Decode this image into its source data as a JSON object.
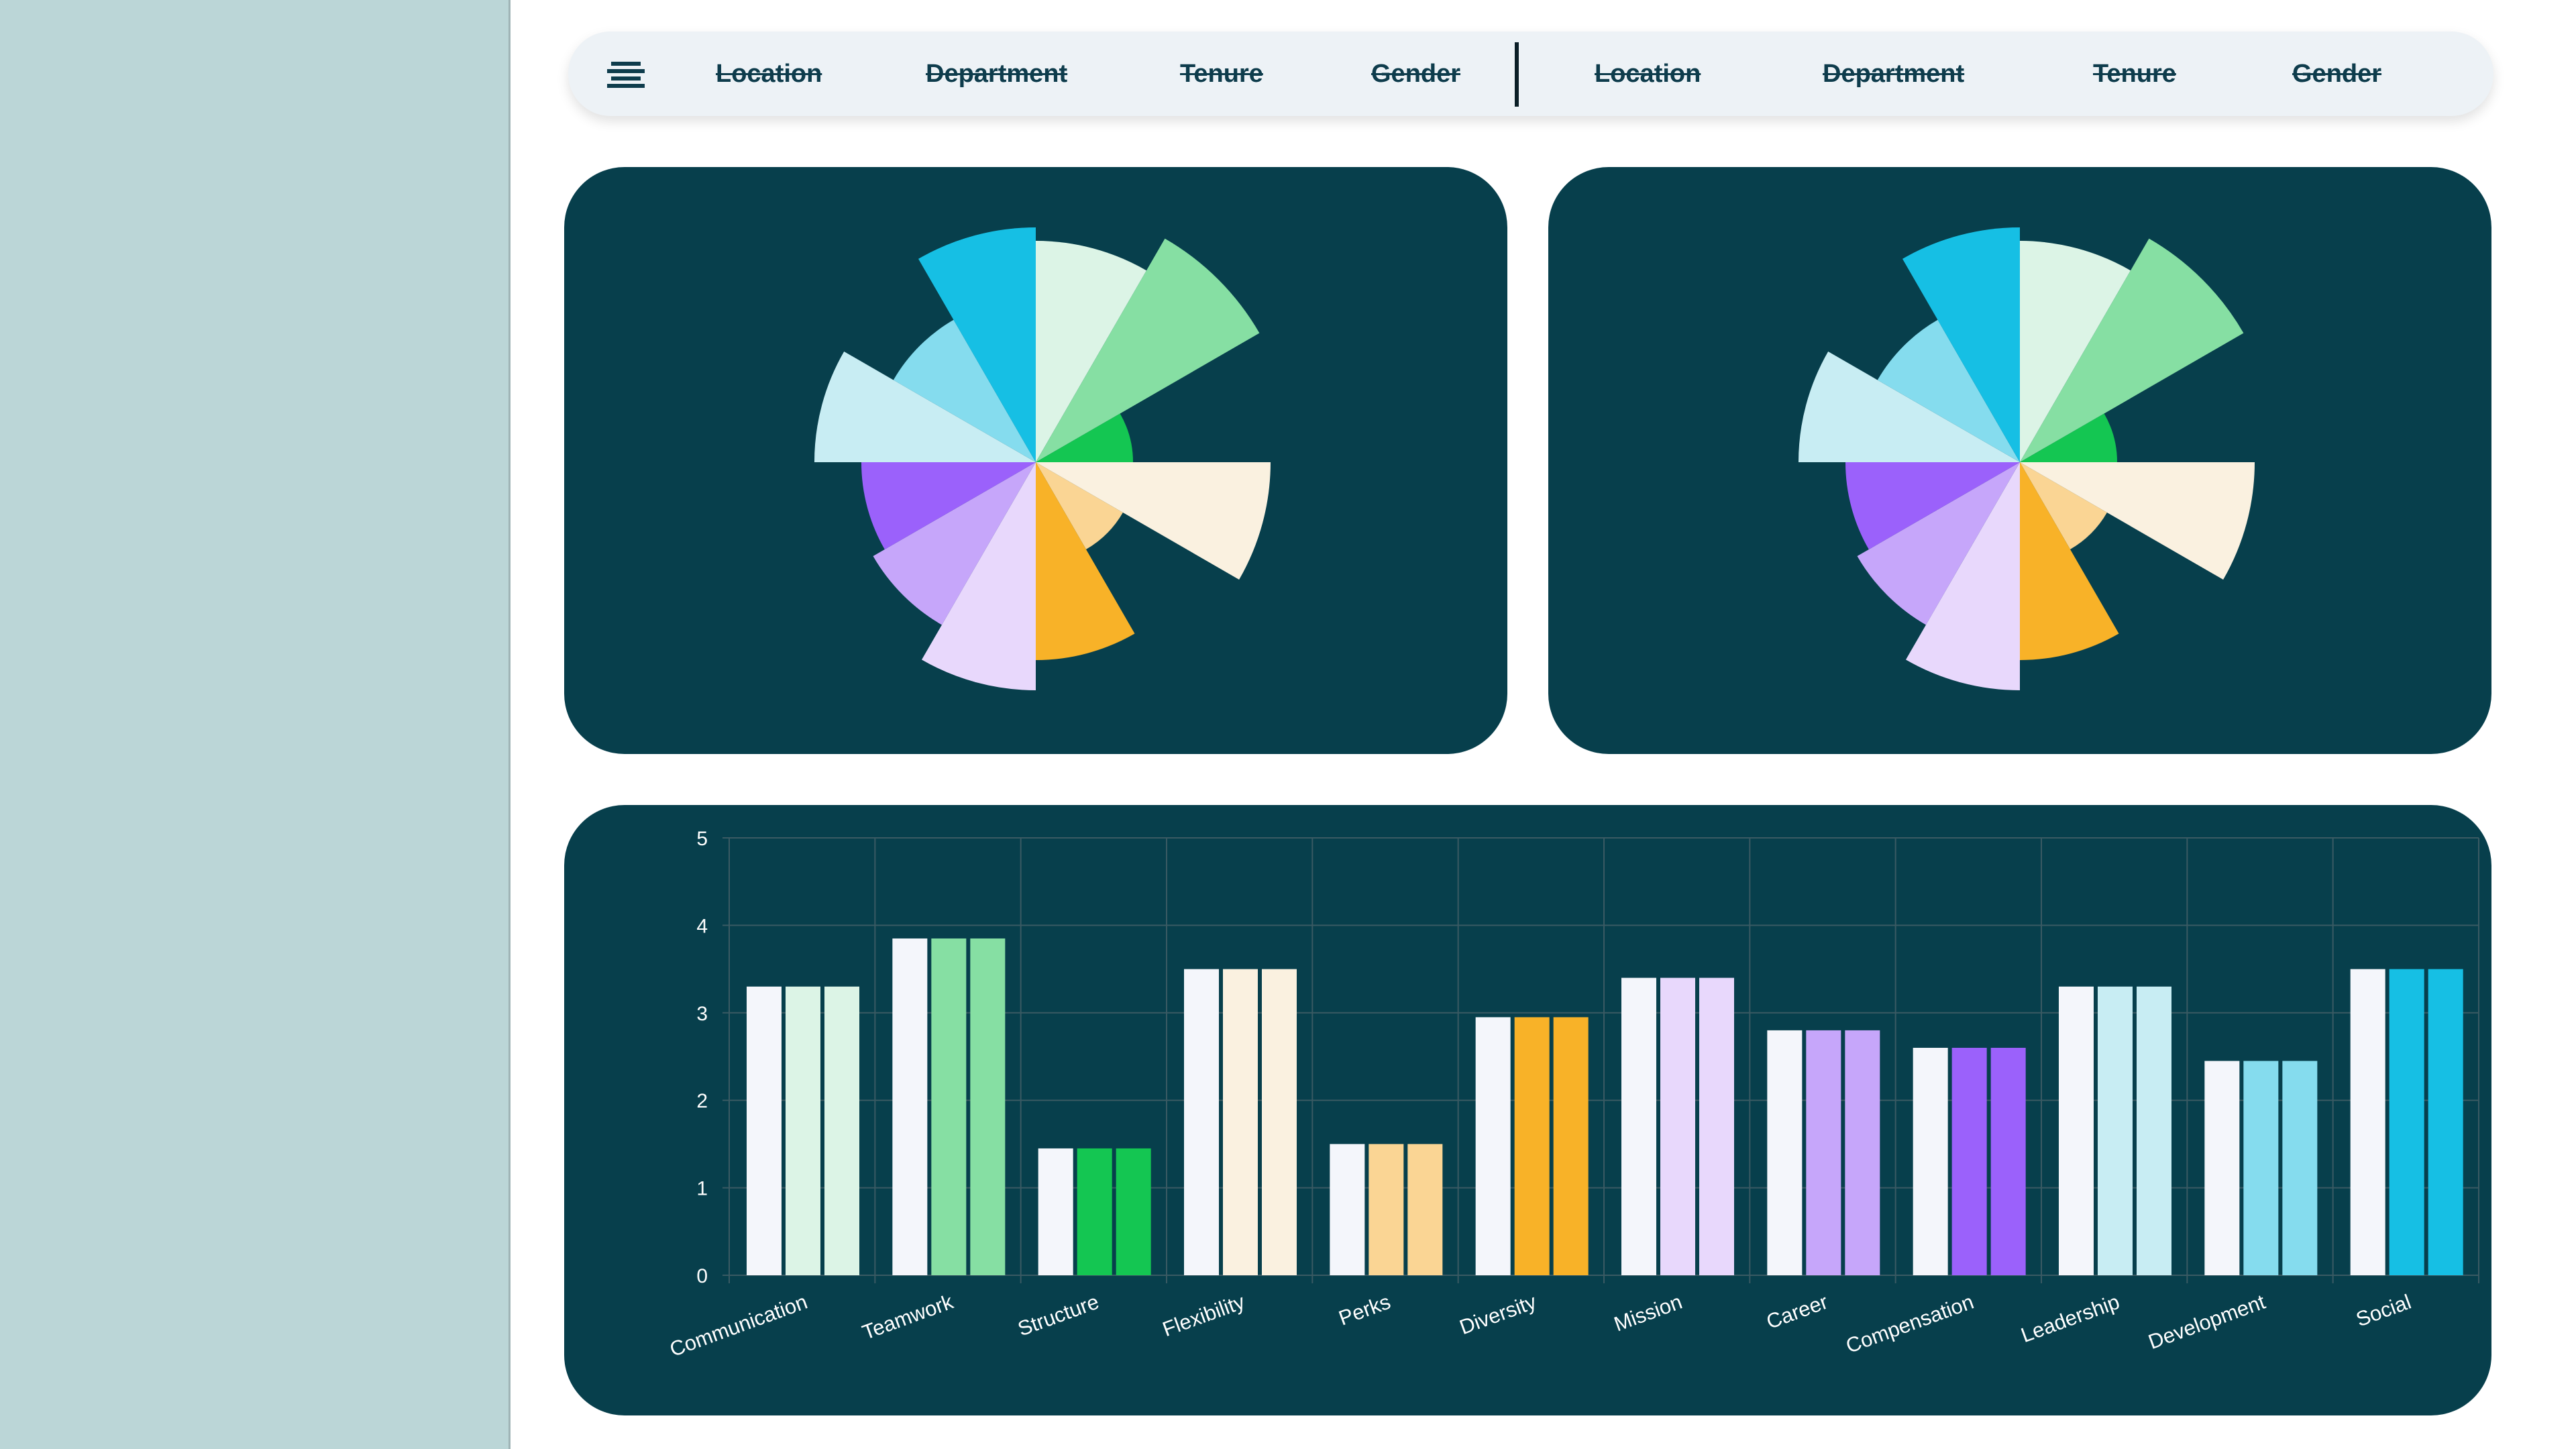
{
  "filters": {
    "group1": [
      "Location",
      "Department",
      "Tenure",
      "Gender"
    ],
    "group2": [
      "Location",
      "Department",
      "Tenure",
      "Gender"
    ]
  },
  "icons": {
    "menu": "menu-lines-icon"
  },
  "colors": {
    "sidebar": "#bbd6d7",
    "card": "#073f4c",
    "filterbar": "#edf2f6",
    "gridline": "#3a5a63",
    "baseline_bar": "#f4f6fb"
  },
  "chart_data": [
    {
      "type": "polar-area",
      "categories": [
        "Communication",
        "Teamwork",
        "Structure",
        "Flexibility",
        "Perks",
        "Diversity",
        "Mission",
        "Career",
        "Compensation",
        "Leadership",
        "Development",
        "Social"
      ],
      "values": [
        3.3,
        3.85,
        1.45,
        3.5,
        1.5,
        2.95,
        3.4,
        2.8,
        2.6,
        3.3,
        2.45,
        3.5
      ],
      "colors": [
        "#dcf4e6",
        "#86dfa3",
        "#14c652",
        "#faf1e0",
        "#fad594",
        "#f8b228",
        "#e8d8fc",
        "#c6a6fa",
        "#9b61fb",
        "#c8edf3",
        "#85dcee",
        "#16bfe4"
      ]
    },
    {
      "type": "polar-area",
      "categories": [
        "Communication",
        "Teamwork",
        "Structure",
        "Flexibility",
        "Perks",
        "Diversity",
        "Mission",
        "Career",
        "Compensation",
        "Leadership",
        "Development",
        "Social"
      ],
      "values": [
        3.3,
        3.85,
        1.45,
        3.5,
        1.5,
        2.95,
        3.4,
        2.8,
        2.6,
        3.3,
        2.45,
        3.5
      ],
      "colors": [
        "#dcf4e6",
        "#86dfa3",
        "#14c652",
        "#faf1e0",
        "#fad594",
        "#f8b228",
        "#e8d8fc",
        "#c6a6fa",
        "#9b61fb",
        "#c8edf3",
        "#85dcee",
        "#16bfe4"
      ]
    },
    {
      "type": "bar",
      "categories": [
        "Communication",
        "Teamwork",
        "Structure",
        "Flexibility",
        "Perks",
        "Diversity",
        "Mission",
        "Career",
        "Compensation",
        "Leadership",
        "Development",
        "Social"
      ],
      "series": [
        {
          "values": [
            3.3,
            3.85,
            1.45,
            3.5,
            1.5,
            2.95,
            3.4,
            2.8,
            2.6,
            3.3,
            2.45,
            3.5
          ]
        },
        {
          "values": [
            3.3,
            3.85,
            1.45,
            3.5,
            1.5,
            2.95,
            3.4,
            2.8,
            2.6,
            3.3,
            2.45,
            3.5
          ]
        },
        {
          "values": [
            3.3,
            3.85,
            1.45,
            3.5,
            1.5,
            2.95,
            3.4,
            2.8,
            2.6,
            3.3,
            2.45,
            3.5
          ]
        }
      ],
      "ylim": [
        0,
        5
      ],
      "yticks": [
        "0",
        "1",
        "2",
        "3",
        "4",
        "5"
      ],
      "grid": true
    }
  ]
}
